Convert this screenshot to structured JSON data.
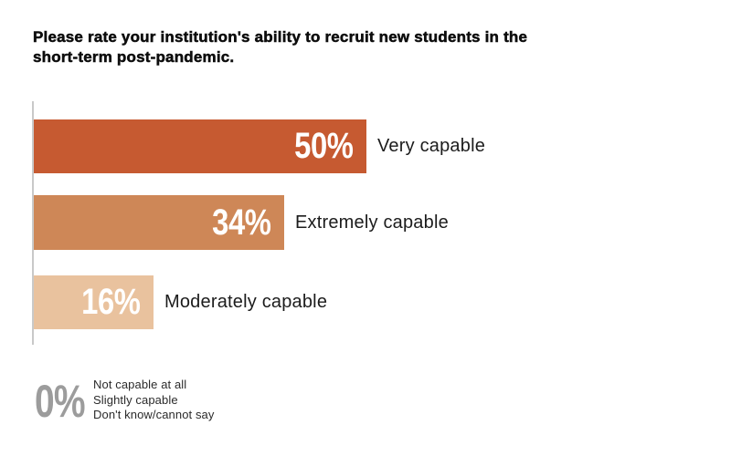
{
  "title": {
    "full_text": "Please rate your institution's ability to recruit new students in the short-term post-pandemic.",
    "lines": [
      "Please rate your institution's ability to recruit new students in the",
      "short-term post-pandemic."
    ]
  },
  "chart_data": {
    "type": "bar",
    "orientation": "horizontal",
    "title": "Please rate your institution's ability to recruit new students in the short-term post-pandemic.",
    "categories": [
      "Very capable",
      "Extremely capable",
      "Moderately capable"
    ],
    "values": [
      50,
      34,
      16
    ],
    "value_labels": [
      "50%",
      "34%",
      "16%"
    ],
    "colors": [
      "#c65a31",
      "#ce8757",
      "#e9c29e"
    ],
    "value_label_position": "inside-end",
    "category_label_position": "outside-end",
    "axis_line_color": "#c9c9c9",
    "grid": false,
    "legend": "none",
    "xlim": [
      0,
      50
    ],
    "zero_group": {
      "value": 0,
      "value_label": "0%",
      "value_color": "#9c9c9c",
      "categories": [
        "Not capable at all",
        "Slightly capable",
        "Don't know/cannot say"
      ]
    }
  }
}
